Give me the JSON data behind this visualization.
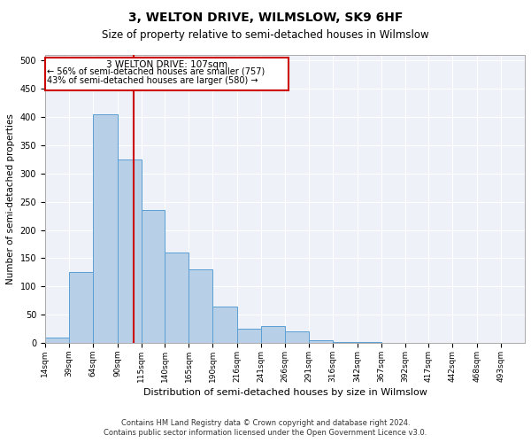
{
  "title": "3, WELTON DRIVE, WILMSLOW, SK9 6HF",
  "subtitle": "Size of property relative to semi-detached houses in Wilmslow",
  "xlabel": "Distribution of semi-detached houses by size in Wilmslow",
  "ylabel": "Number of semi-detached properties",
  "bar_color": "#b8cfe8",
  "bar_edge_color": "#5a9fd4",
  "vline_x": 107,
  "vline_color": "#cc0000",
  "annotation_title": "3 WELTON DRIVE: 107sqm",
  "annotation_line1": "← 56% of semi-detached houses are smaller (757)",
  "annotation_line2": "43% of semi-detached houses are larger (580) →",
  "footnote1": "Contains HM Land Registry data © Crown copyright and database right 2024.",
  "footnote2": "Contains public sector information licensed under the Open Government Licence v3.0.",
  "bin_edges": [
    14,
    39,
    64,
    90,
    115,
    140,
    165,
    190,
    216,
    241,
    266,
    291,
    316,
    342,
    367,
    392,
    417,
    442,
    468,
    493,
    518
  ],
  "bin_counts": [
    10,
    125,
    405,
    325,
    235,
    160,
    130,
    65,
    25,
    30,
    20,
    5,
    2,
    1,
    0,
    0,
    0,
    0,
    0,
    0
  ],
  "ylim": [
    0,
    510
  ],
  "background_color": "#eef2f8",
  "title_fontsize": 10,
  "subtitle_fontsize": 8.5,
  "tick_label_fontsize": 6.5,
  "axis_label_fontsize": 8,
  "ylabel_fontsize": 7.5
}
